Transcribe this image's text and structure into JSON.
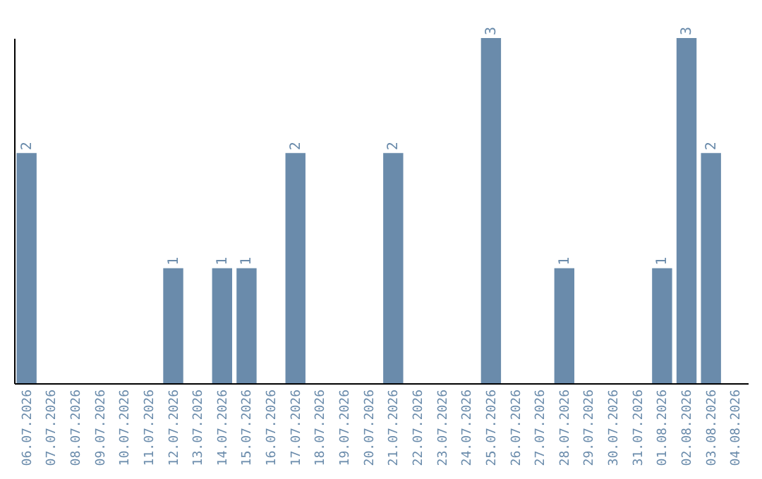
{
  "chart_data": {
    "type": "bar",
    "categories": [
      "06.07.2026",
      "07.07.2026",
      "08.07.2026",
      "09.07.2026",
      "10.07.2026",
      "11.07.2026",
      "12.07.2026",
      "13.07.2026",
      "14.07.2026",
      "15.07.2026",
      "16.07.2026",
      "17.07.2026",
      "18.07.2026",
      "19.07.2026",
      "20.07.2026",
      "21.07.2026",
      "22.07.2026",
      "23.07.2026",
      "24.07.2026",
      "25.07.2026",
      "26.07.2026",
      "27.07.2026",
      "28.07.2026",
      "29.07.2026",
      "30.07.2026",
      "31.07.2026",
      "01.08.2026",
      "02.08.2026",
      "03.08.2026",
      "04.08.2026"
    ],
    "values": [
      2,
      0,
      0,
      0,
      0,
      0,
      1,
      0,
      1,
      1,
      0,
      2,
      0,
      0,
      0,
      2,
      0,
      0,
      0,
      3,
      0,
      0,
      1,
      0,
      0,
      0,
      1,
      3,
      2,
      0
    ],
    "value_labels": [
      "2",
      null,
      null,
      null,
      null,
      null,
      "1",
      null,
      "1",
      "1",
      null,
      "2",
      null,
      null,
      null,
      "2",
      null,
      null,
      null,
      "3",
      null,
      null,
      "1",
      null,
      null,
      null,
      "1",
      "3",
      "2",
      null
    ],
    "color": "#6a8bab",
    "grid": false
  }
}
